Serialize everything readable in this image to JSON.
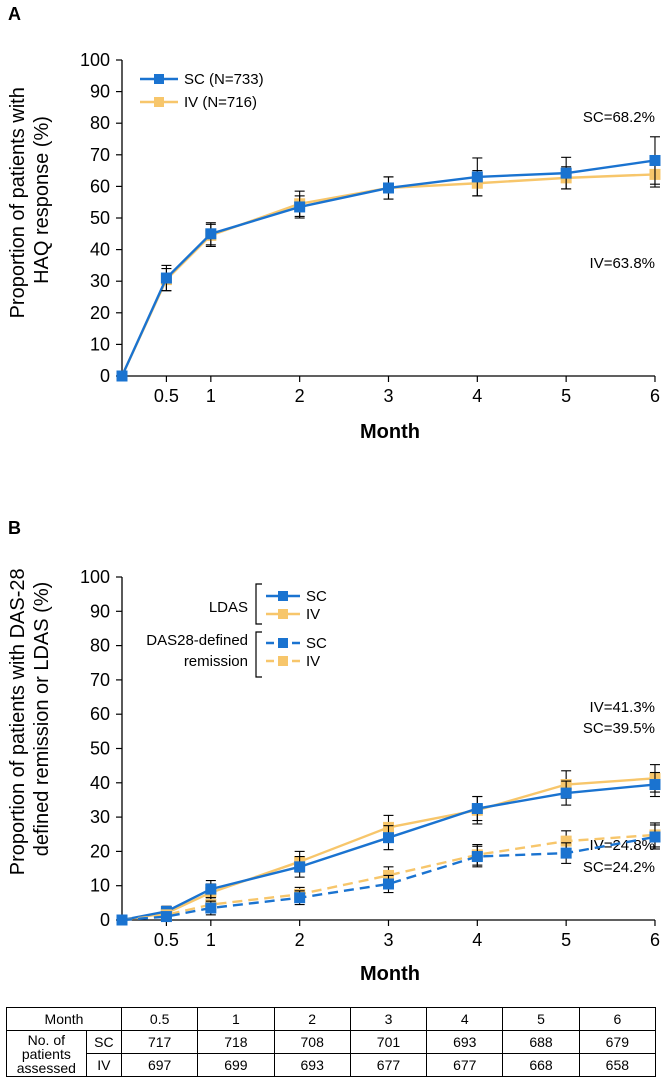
{
  "colors": {
    "sc": "#1a73d0",
    "iv": "#f7c66b",
    "axis": "#000000"
  },
  "chart_data": [
    {
      "panel": "A",
      "type": "line",
      "ylabel": "Proportion of patients with HAQ response (%)",
      "ylabel_lines": [
        "Proportion of patients with",
        "HAQ response (%)"
      ],
      "xlabel": "Month",
      "ylim": [
        0,
        100
      ],
      "yticks": [
        0,
        10,
        20,
        30,
        40,
        50,
        60,
        70,
        80,
        90,
        100
      ],
      "xticks": [
        0.5,
        1,
        2,
        3,
        4,
        5,
        6
      ],
      "xtick_labels": [
        "0.5",
        "1",
        "2",
        "3",
        "4",
        "5",
        "6"
      ],
      "legend_position": "top-left",
      "series": [
        {
          "name": "SC (N=733)",
          "color": "sc",
          "dash": false,
          "x": [
            0,
            0.5,
            1,
            2,
            3,
            4,
            5,
            6
          ],
          "y": [
            0,
            31,
            45,
            53.5,
            59.5,
            63,
            64.2,
            68.2
          ],
          "err": [
            0,
            4,
            3.5,
            3.5,
            3.5,
            6,
            5,
            7.5
          ]
        },
        {
          "name": "IV (N=716)",
          "color": "iv",
          "dash": false,
          "x": [
            0,
            0.5,
            1,
            2,
            3,
            4,
            5,
            6
          ],
          "y": [
            0,
            30.5,
            44.5,
            54.5,
            59.5,
            61,
            62.7,
            63.8
          ],
          "err": [
            0,
            3.5,
            3.5,
            4,
            3.5,
            4,
            3.5,
            4
          ]
        }
      ],
      "annotations": [
        "SC=68.2%",
        "IV=63.8%"
      ]
    },
    {
      "panel": "B",
      "type": "line",
      "ylabel": "Proportion of patients with DAS-28 defined remission or LDAS (%)",
      "ylabel_lines": [
        "Proportion of patients with DAS-28",
        "defined remission or LDAS (%)"
      ],
      "xlabel": "Month",
      "ylim": [
        0,
        100
      ],
      "yticks": [
        0,
        10,
        20,
        30,
        40,
        50,
        60,
        70,
        80,
        90,
        100
      ],
      "xticks": [
        0.5,
        1,
        2,
        3,
        4,
        5,
        6
      ],
      "xtick_labels": [
        "0.5",
        "1",
        "2",
        "3",
        "4",
        "5",
        "6"
      ],
      "legend_position": "top-left",
      "legend_groups": [
        "LDAS",
        "DAS28-defined",
        "remission"
      ],
      "series": [
        {
          "name": "SC",
          "group": "LDAS",
          "color": "sc",
          "dash": false,
          "x": [
            0,
            0.5,
            1,
            2,
            3,
            4,
            5,
            6
          ],
          "y": [
            0,
            2.5,
            9,
            15.5,
            24,
            32.5,
            37,
            39.5
          ],
          "err": [
            0,
            1.5,
            2.5,
            3,
            3.5,
            3.5,
            3.5,
            3.5
          ]
        },
        {
          "name": "IV",
          "group": "LDAS",
          "color": "iv",
          "dash": false,
          "x": [
            0,
            0.5,
            1,
            2,
            3,
            4,
            5,
            6
          ],
          "y": [
            0,
            2,
            8,
            17,
            27,
            32,
            39.5,
            41.3
          ],
          "err": [
            0,
            1.5,
            2.5,
            3,
            3.5,
            4,
            4,
            4
          ]
        },
        {
          "name": "SC",
          "group": "DAS28-defined remission",
          "color": "sc",
          "dash": true,
          "x": [
            0,
            0.5,
            1,
            2,
            3,
            4,
            5,
            6
          ],
          "y": [
            0,
            1,
            3.5,
            6.5,
            10.5,
            18.5,
            19.5,
            24.2
          ],
          "err": [
            0,
            1,
            2,
            2,
            2.5,
            3,
            3,
            3.5
          ]
        },
        {
          "name": "IV",
          "group": "DAS28-defined remission",
          "color": "iv",
          "dash": true,
          "x": [
            0,
            0.5,
            1,
            2,
            3,
            4,
            5,
            6
          ],
          "y": [
            0,
            1.5,
            4.5,
            7.5,
            13,
            19,
            23,
            24.8
          ],
          "err": [
            0,
            1,
            2,
            2,
            2.5,
            3,
            3,
            3.5
          ]
        }
      ],
      "annotations": [
        "IV=41.3%",
        "SC=39.5%",
        "IV=24.8%",
        "SC=24.2%"
      ]
    }
  ],
  "table": {
    "header_label": "Month",
    "months": [
      "0.5",
      "1",
      "2",
      "3",
      "4",
      "5",
      "6"
    ],
    "row_label_lines": [
      "No. of",
      "patients",
      "assessed"
    ],
    "rows": [
      {
        "group": "SC",
        "values": [
          "717",
          "718",
          "708",
          "701",
          "693",
          "688",
          "679"
        ]
      },
      {
        "group": "IV",
        "values": [
          "697",
          "699",
          "693",
          "677",
          "677",
          "668",
          "658"
        ]
      }
    ]
  }
}
